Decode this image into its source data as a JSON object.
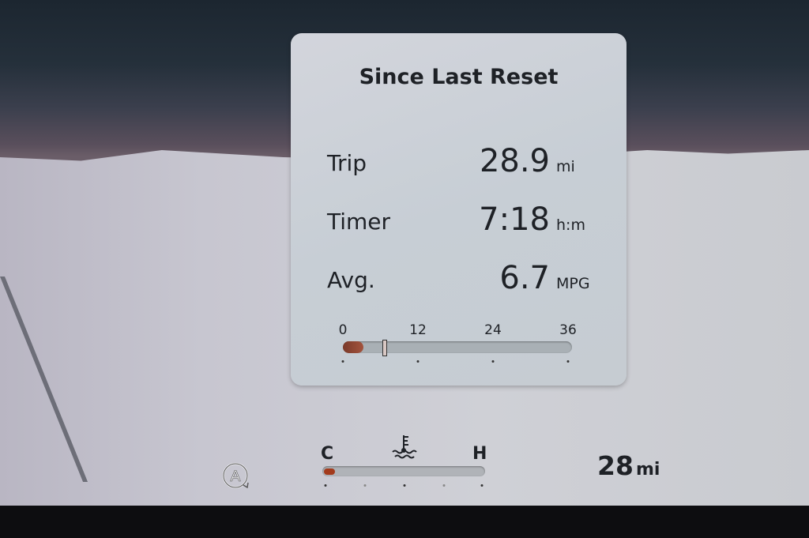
{
  "popup": {
    "title": "Since Last Reset",
    "rows": [
      {
        "label": "Trip",
        "value": "28.9",
        "unit": "mi"
      },
      {
        "label": "Timer",
        "value": "7:18",
        "unit": "h:m"
      },
      {
        "label": "Avg.",
        "value": "6.7",
        "unit": "MPG"
      }
    ],
    "mpg_gauge": {
      "ticks": [
        "0",
        "12",
        "24",
        "36"
      ],
      "min": 0,
      "max": 36,
      "instant_fill": 3.3,
      "average_marker": 6.7,
      "fill_color": "#a3533d"
    }
  },
  "temp_gauge": {
    "cold_label": "C",
    "hot_label": "H",
    "icon": "coolant-temperature-icon",
    "level_fraction": 0.05,
    "fill_color": "#a33a1c"
  },
  "auto_hold_icon": "auto-stop-start-icon",
  "range": {
    "value": "28",
    "unit": "mi"
  }
}
